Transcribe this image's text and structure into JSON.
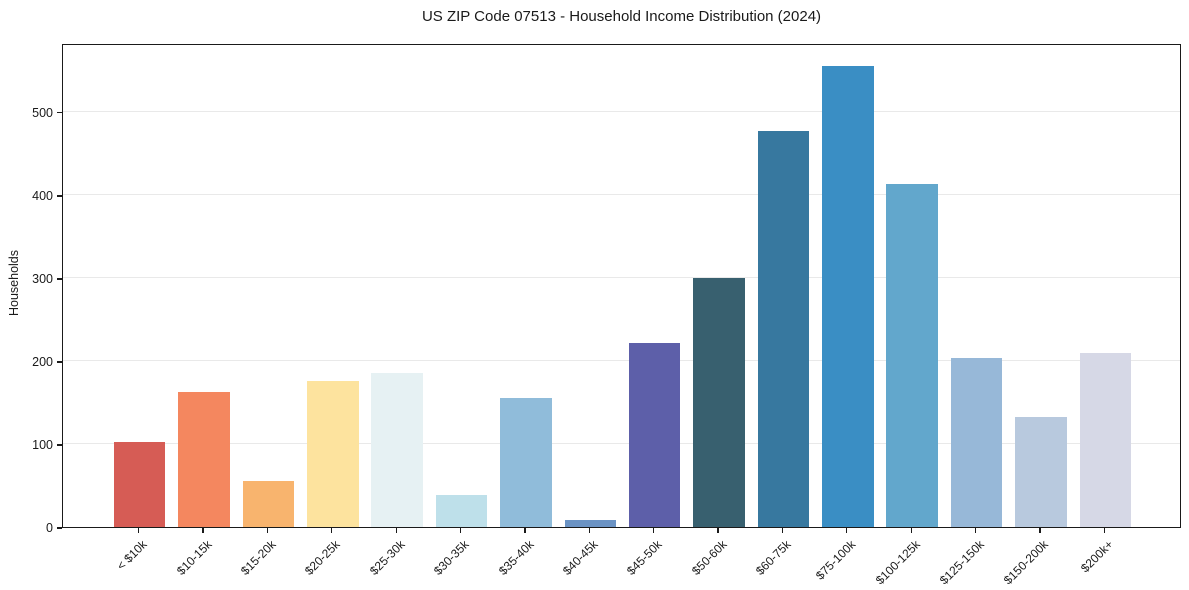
{
  "chart_data": {
    "type": "bar",
    "title": "US ZIP Code 07513 - Household Income Distribution (2024)",
    "xlabel": "",
    "ylabel": "Households",
    "categories": [
      "< $10k",
      "$10-15k",
      "$15-20k",
      "$20-25k",
      "$25-30k",
      "$30-35k",
      "$35-40k",
      "$40-45k",
      "$45-50k",
      "$50-60k",
      "$60-75k",
      "$75-100k",
      "$100-125k",
      "$125-150k",
      "$150-200k",
      "$200k+"
    ],
    "values": [
      102,
      163,
      55,
      176,
      185,
      38,
      156,
      8,
      222,
      300,
      477,
      555,
      413,
      204,
      133,
      210
    ],
    "bar_colors": [
      "#d65c55",
      "#f4875f",
      "#f8b46e",
      "#fde39e",
      "#e6f1f3",
      "#bee0ea",
      "#90bcda",
      "#6b93c4",
      "#5d5fa9",
      "#38606f",
      "#37789f",
      "#3a8ec4",
      "#62a7cc",
      "#97b8d8",
      "#b8c9de",
      "#d6d8e6"
    ],
    "ylim": [
      0,
      583
    ],
    "yticks": [
      0,
      100,
      200,
      300,
      400,
      500
    ],
    "grid": "horizontal-only",
    "legend": "none",
    "background": "#ffffff",
    "grid_color": "#e9e9e9",
    "spine_color": "#1a1a1a",
    "text_color": "#1a1a1a"
  }
}
